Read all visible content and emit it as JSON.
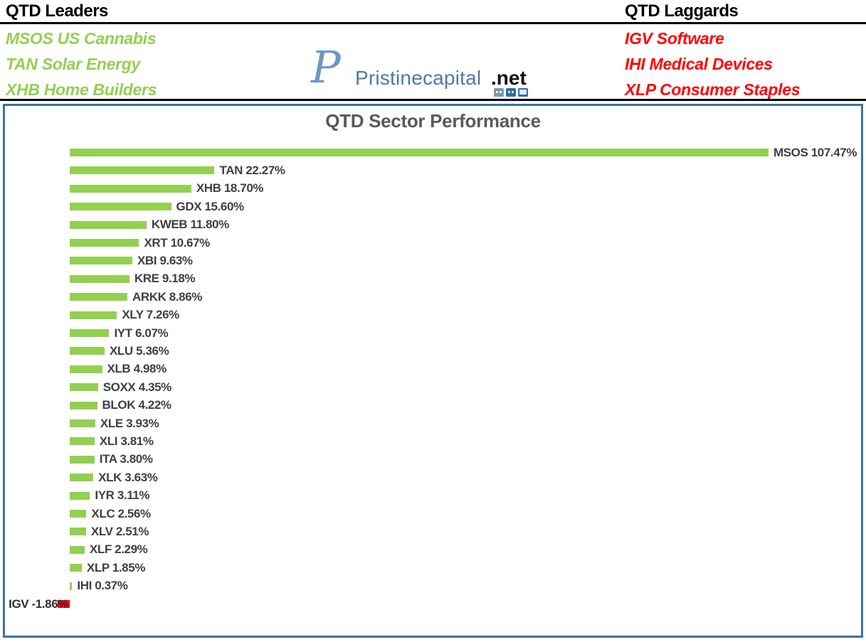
{
  "header": {
    "leaders": {
      "title": "QTD Leaders",
      "items": [
        "MSOS US Cannabis",
        "TAN Solar Energy",
        "XHB Home Builders"
      ]
    },
    "laggards": {
      "title": "QTD Laggards",
      "items": [
        "IGV Software",
        "IHI Medical Devices",
        "XLP Consumer Staples"
      ]
    },
    "logo": {
      "monogram": "P",
      "brand": "Pristinecapital",
      "tld": ".net",
      "icons": [
        "twitch-icon",
        "discord-icon",
        "tv-icon"
      ]
    }
  },
  "colors": {
    "positive_bar": "#92D050",
    "negative_bar": "#FF0000",
    "leader_text": "#92D050",
    "laggard_text": "#FF0000",
    "chart_border": "#3973A5",
    "label_text": "#404040",
    "title_text": "#595959"
  },
  "chart_data": {
    "type": "bar",
    "orientation": "horizontal",
    "title": "QTD Sector Performance",
    "value_suffix": "%",
    "xlim": [
      -5,
      120
    ],
    "grid": false,
    "legend": false,
    "categories": [
      "MSOS",
      "TAN",
      "XHB",
      "GDX",
      "KWEB",
      "XRT",
      "XBI",
      "KRE",
      "ARKK",
      "XLY",
      "IYT",
      "XLU",
      "XLB",
      "SOXX",
      "BLOK",
      "XLE",
      "XLI",
      "ITA",
      "XLK",
      "IYR",
      "XLC",
      "XLV",
      "XLF",
      "XLP",
      "IHI",
      "IGV"
    ],
    "values": [
      107.47,
      22.27,
      18.7,
      15.6,
      11.8,
      10.67,
      9.63,
      9.18,
      8.86,
      7.26,
      6.07,
      5.36,
      4.98,
      4.35,
      4.22,
      3.93,
      3.81,
      3.8,
      3.63,
      3.11,
      2.56,
      2.51,
      2.29,
      1.85,
      0.37,
      -1.86
    ],
    "labels": [
      "MSOS 107.47%",
      "TAN 22.27%",
      "XHB 18.70%",
      "GDX 15.60%",
      "KWEB 11.80%",
      "XRT 10.67%",
      "XBI 9.63%",
      "KRE 9.18%",
      "ARKK 8.86%",
      "XLY 7.26%",
      "IYT 6.07%",
      "XLU 5.36%",
      "XLB 4.98%",
      "SOXX 4.35%",
      "BLOK 4.22%",
      "XLE 3.93%",
      "XLI 3.81%",
      "ITA 3.80%",
      "XLK 3.63%",
      "IYR 3.11%",
      "XLC 2.56%",
      "XLV 2.51%",
      "XLF 2.29%",
      "XLP 1.85%",
      "IHI 0.37%",
      "IGV -1.86%"
    ]
  }
}
